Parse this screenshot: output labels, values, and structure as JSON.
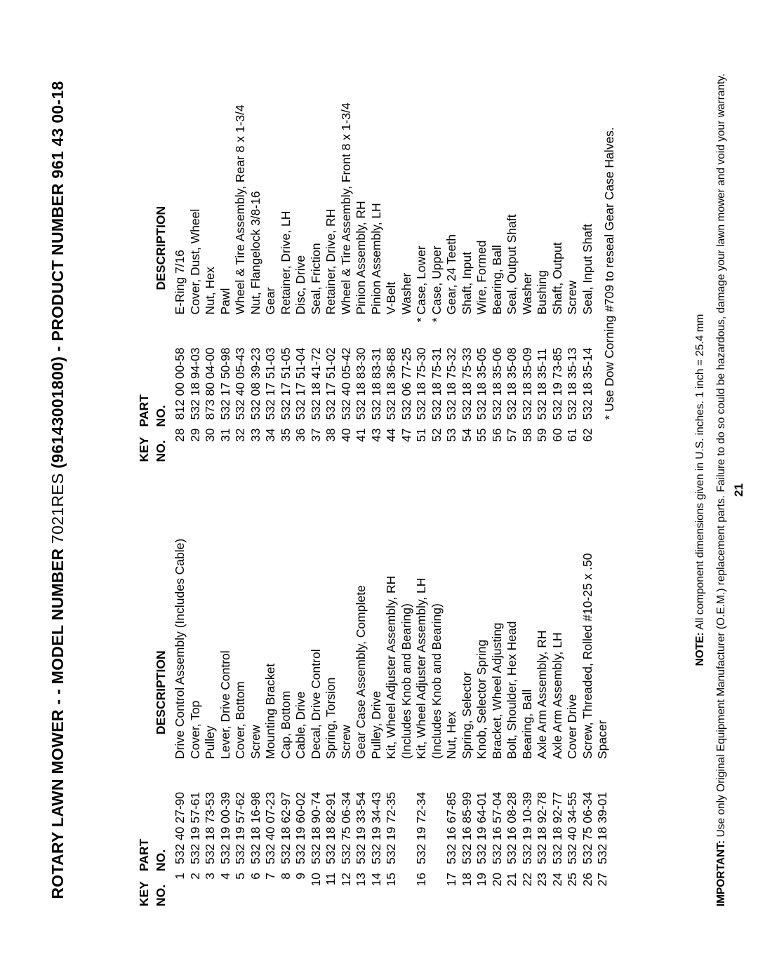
{
  "title_prefix": "ROTARY LAWN MOWER - - MODEL NUMBER ",
  "title_model": "7021RES",
  "title_suffix": "  (96143001800) - PRODUCT NUMBER 961 43 00-18",
  "columns": {
    "headers": {
      "key1": "KEY",
      "key2": "NO.",
      "part1": "PART",
      "part2": "NO.",
      "desc": "DESCRIPTION"
    }
  },
  "left": [
    {
      "key": "1",
      "part": "532 40 27-90",
      "desc": "Drive Control Assembly (Includes Cable)"
    },
    {
      "key": "2",
      "part": "532 19 57-61",
      "desc": "Cover, Top"
    },
    {
      "key": "3",
      "part": "532 18 73-53",
      "desc": "Pulley"
    },
    {
      "key": "4",
      "part": "532 19 00-39",
      "desc": "Lever, Drive Control"
    },
    {
      "key": "5",
      "part": "532 19 57-62",
      "desc": "Cover, Bottom"
    },
    {
      "key": "6",
      "part": "532 18 16-98",
      "desc": "Screw"
    },
    {
      "key": "7",
      "part": "532 40 07-23",
      "desc": "Mounting Bracket"
    },
    {
      "key": "8",
      "part": "532 18 62-97",
      "desc": "Cap, Bottom"
    },
    {
      "key": "9",
      "part": "532 19 60-02",
      "desc": "Cable, Drive"
    },
    {
      "key": "10",
      "part": "532 18 90-74",
      "desc": "Decal, Drive Control"
    },
    {
      "key": "11",
      "part": "532 18 82-91",
      "desc": "Spring, Torsion"
    },
    {
      "key": "12",
      "part": "532 75 06-34",
      "desc": "Screw"
    },
    {
      "key": "13",
      "part": "532 19 33-54",
      "desc": "Gear Case Assembly, Complete"
    },
    {
      "key": "14",
      "part": "532 19 34-43",
      "desc": "Pulley, Drive"
    },
    {
      "key": "15",
      "part": "532 19 72-35",
      "desc": "Kit, Wheel Adjuster Assembly, RH"
    },
    {
      "key": "",
      "part": "",
      "desc": "(Includes Knob and Bearing)"
    },
    {
      "key": "16",
      "part": "532 19 72-34",
      "desc": "Kit, Wheel Adjuster Assembly, LH"
    },
    {
      "key": "",
      "part": "",
      "desc": "(Includes Knob and Bearing)"
    },
    {
      "key": "17",
      "part": "532 16 67-85",
      "desc": "Nut, Hex"
    },
    {
      "key": "18",
      "part": "532 16 85-99",
      "desc": "Spring, Selector"
    },
    {
      "key": "19",
      "part": "532 19 64-01",
      "desc": "Knob, Selector Spring"
    },
    {
      "key": "20",
      "part": "532 16 57-04",
      "desc": "Bracket, Wheel Adjusting"
    },
    {
      "key": "21",
      "part": "532 16 08-28",
      "desc": "Bolt, Shoulder, Hex Head"
    },
    {
      "key": "22",
      "part": "532 19 10-39",
      "desc": "Bearing, Ball"
    },
    {
      "key": "23",
      "part": "532 18 92-78",
      "desc": "Axle Arm Assembly, RH"
    },
    {
      "key": "24",
      "part": "532 18 92-77",
      "desc": "Axle Arm Assembly, LH"
    },
    {
      "key": "25",
      "part": "532 40 34-55",
      "desc": "Cover Drive"
    },
    {
      "key": "26",
      "part": "532 75 06-34",
      "desc": "Screw, Threaded, Rolled  #10-25 x .50"
    },
    {
      "key": "27",
      "part": "532 18 39-01",
      "desc": "Spacer"
    }
  ],
  "right": [
    {
      "key": "28",
      "part": "812 00 00-58",
      "desc": "E-Ring   7/16"
    },
    {
      "key": "29",
      "part": "532 18 94-03",
      "desc": "Cover, Dust, Wheel"
    },
    {
      "key": "30",
      "part": "873 80 04-00",
      "desc": "Nut, Hex"
    },
    {
      "key": "31",
      "part": "532 17 50-98",
      "desc": "Pawl"
    },
    {
      "key": "32",
      "part": "532 40 05-43",
      "desc": "Wheel & Tire Assembly, Rear   8 x 1-3/4"
    },
    {
      "key": "33",
      "part": "532 08 39-23",
      "desc": "Nut, Flangelock  3/8-16"
    },
    {
      "key": "34",
      "part": "532 17 51-03",
      "desc": "Gear"
    },
    {
      "key": "35",
      "part": "532 17 51-05",
      "desc": "Retainer, Drive, LH"
    },
    {
      "key": "36",
      "part": "532 17 51-04",
      "desc": "Disc, Drive"
    },
    {
      "key": "37",
      "part": "532 18 41-72",
      "desc": "Seal, Friction"
    },
    {
      "key": "38",
      "part": "532 17 51-02",
      "desc": "Retainer, Drive, RH"
    },
    {
      "key": "40",
      "part": "532 40 05-42",
      "desc": "Wheel & Tire Assembly, Front  8 x 1-3/4"
    },
    {
      "key": "41",
      "part": "532 18 83-30",
      "desc": "Pinion Assembly, RH"
    },
    {
      "key": "43",
      "part": "532 18 83-31",
      "desc": "Pinion Assembly, LH"
    },
    {
      "key": "44",
      "part": "532 18 36-88",
      "desc": "V-Belt"
    },
    {
      "key": "47",
      "part": "532 06 77-25",
      "desc": "Washer"
    },
    {
      "key": "51",
      "part": "532 18 75-30",
      "star": "*",
      "desc": "Case, Lower"
    },
    {
      "key": "52",
      "part": "532 18 75-31",
      "star": "*",
      "desc": "Case, Upper"
    },
    {
      "key": "53",
      "part": "532 18 75-32",
      "desc": "Gear, 24 Teeth"
    },
    {
      "key": "54",
      "part": "532 18 75-33",
      "desc": "Shaft, Input"
    },
    {
      "key": "55",
      "part": "532 18 35-05",
      "desc": "Wire, Formed"
    },
    {
      "key": "56",
      "part": "532 18 35-06",
      "desc": "Bearing, Ball"
    },
    {
      "key": "57",
      "part": "532 18 35-08",
      "desc": "Seal, Output Shaft"
    },
    {
      "key": "58",
      "part": "532 18 35-09",
      "desc": "Washer"
    },
    {
      "key": "59",
      "part": "532 18 35-11",
      "desc": "Bushing"
    },
    {
      "key": "60",
      "part": "532 19 73-85",
      "desc": "Shaft, Output"
    },
    {
      "key": "61",
      "part": "532 18 35-13",
      "desc": "Screw"
    },
    {
      "key": "62",
      "part": "532 18 35-14",
      "desc": "Seal, Input Shaft"
    }
  ],
  "footnote": "* Use Dow Corning #709 to reseal Gear Case Halves.",
  "note_label": "NOTE:",
  "note_text": " All component dimensions given in U.S. inches.   1 inch = 25.4 mm",
  "important_label": "IMPORTANT:",
  "important_text": " Use only Original Equipment Manufacturer (O.E.M.) replacement parts.  Failure to do so could be hazardous, damage your lawn mower and void your warranty.",
  "page_number": "21"
}
